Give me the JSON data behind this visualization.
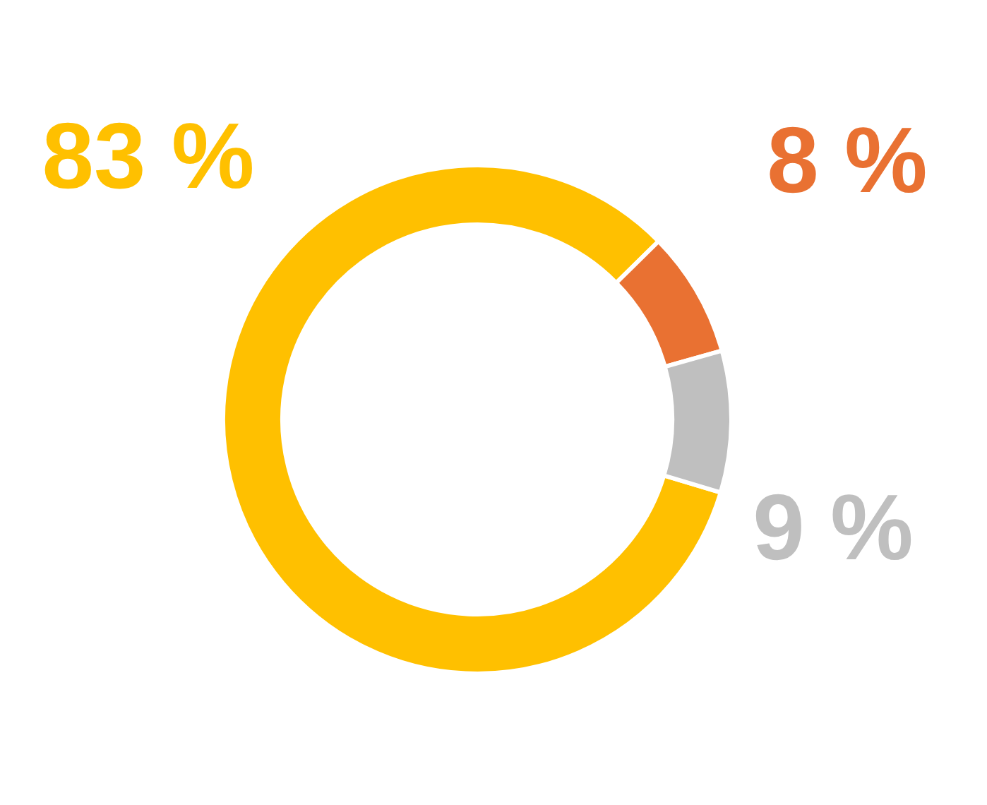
{
  "chart_data": {
    "type": "donut",
    "categories": [
      null,
      null,
      null
    ],
    "values": [
      83,
      8,
      9
    ],
    "colors": [
      "#ffc000",
      "#e97132",
      "#bfbfbf"
    ],
    "value_labels": [
      "83 %",
      "8 %",
      "9 %"
    ]
  }
}
